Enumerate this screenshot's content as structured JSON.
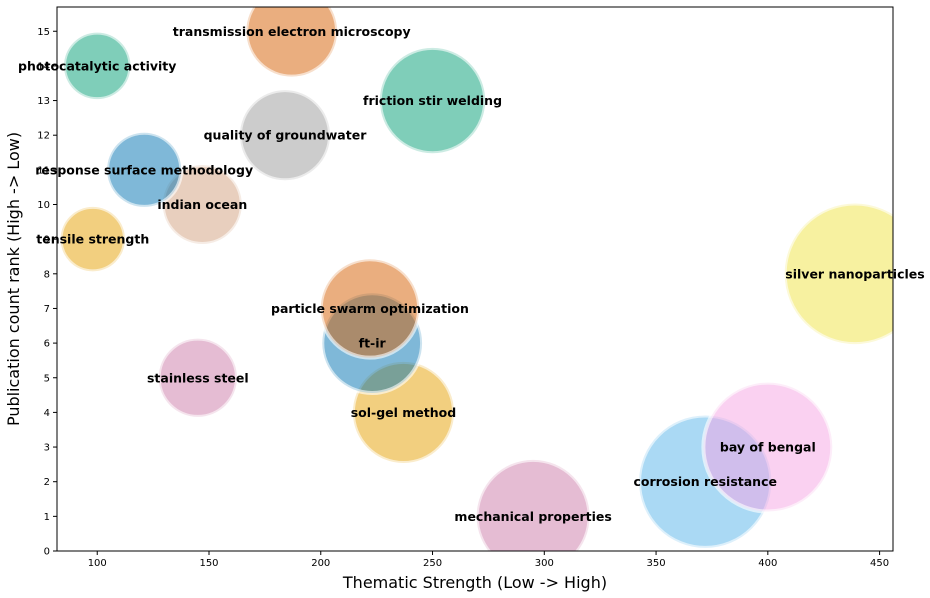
{
  "chart_data": {
    "type": "scatter",
    "title": "",
    "xlabel": "Thematic Strength (Low -> High)",
    "ylabel": "Publication count rank (High -> Low)",
    "xlim": [
      82,
      456
    ],
    "ylim": [
      0,
      15.7
    ],
    "xticks": [
      100,
      150,
      200,
      250,
      300,
      350,
      400,
      450
    ],
    "yticks": [
      0,
      1,
      2,
      3,
      4,
      5,
      6,
      7,
      8,
      9,
      10,
      11,
      12,
      13,
      14,
      15
    ],
    "grid": false,
    "points": [
      {
        "label": "mechanical properties",
        "x": 295,
        "y": 1,
        "size": 16.3,
        "color": "#CC79A7"
      },
      {
        "label": "corrosion resistance",
        "x": 372,
        "y": 2,
        "size": 19.1,
        "color": "#56B4E9"
      },
      {
        "label": "bay of bengal",
        "x": 400,
        "y": 3,
        "size": 18.6,
        "color": "#F5A3E3"
      },
      {
        "label": "sol-gel method",
        "x": 237,
        "y": 4,
        "size": 14.6,
        "color": "#E69F00"
      },
      {
        "label": "stainless steel",
        "x": 145,
        "y": 5,
        "size": 11.3,
        "color": "#CC79A7"
      },
      {
        "label": "ft-ir",
        "x": 223,
        "y": 6,
        "size": 14.4,
        "color": "#0072B2"
      },
      {
        "label": "particle swarm optimization",
        "x": 222,
        "y": 7,
        "size": 14.2,
        "color": "#D55E00"
      },
      {
        "label": "silver nanoparticles",
        "x": 439,
        "y": 8,
        "size": 20.3,
        "color": "#F0E442"
      },
      {
        "label": "tensile strength",
        "x": 98,
        "y": 9,
        "size": 9.3,
        "color": "#E69F00"
      },
      {
        "label": "indian ocean",
        "x": 147,
        "y": 10,
        "size": 11.4,
        "color": "#D2A07E"
      },
      {
        "label": "response surface methodology",
        "x": 121,
        "y": 11,
        "size": 10.7,
        "color": "#0072B2"
      },
      {
        "label": "quality of groundwater",
        "x": 184,
        "y": 12,
        "size": 13.0,
        "color": "#999999"
      },
      {
        "label": "friction stir welding",
        "x": 250,
        "y": 13,
        "size": 15.2,
        "color": "#009E73"
      },
      {
        "label": "photocatalytic activity",
        "x": 100,
        "y": 14,
        "size": 9.6,
        "color": "#009E73"
      },
      {
        "label": "transmission electron microscopy",
        "x": 187,
        "y": 15,
        "size": 13.1,
        "color": "#D55E00"
      }
    ]
  }
}
